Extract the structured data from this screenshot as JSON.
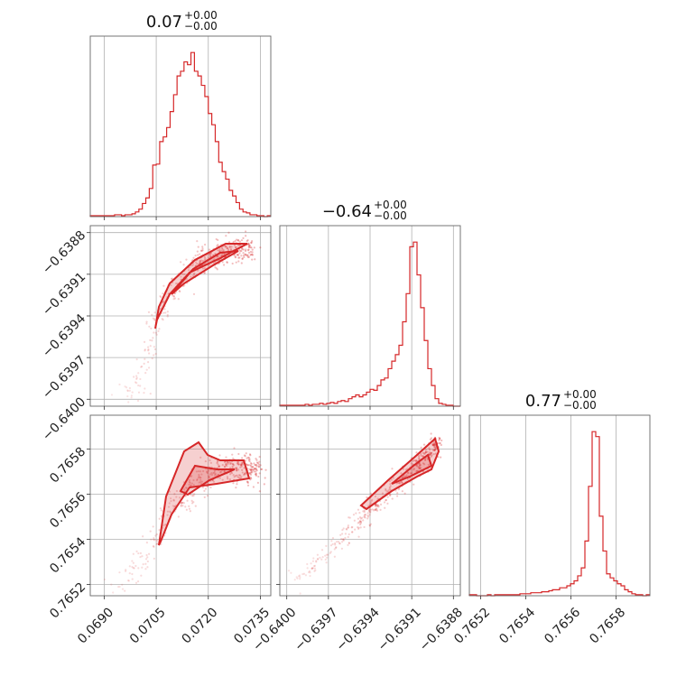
{
  "chart_data": {
    "type": "corner",
    "color": "#d62728",
    "parameters": [
      {
        "title_value": "0.07",
        "title_plus": "+0.00",
        "title_minus": "−0.00",
        "range": [
          0.0686,
          0.0738
        ],
        "ticks": [
          {
            "value": 0.069,
            "label": "0.0690"
          },
          {
            "value": 0.0705,
            "label": "0.0705"
          },
          {
            "value": 0.072,
            "label": "0.0720"
          },
          {
            "value": 0.0735,
            "label": "0.0735"
          }
        ],
        "hist": {
          "bin_edges_start": 0.0686,
          "bin_width": 0.0001,
          "counts": [
            1,
            1,
            1,
            1,
            1,
            1,
            1,
            2,
            2,
            1,
            2,
            2,
            3,
            5,
            8,
            14,
            20,
            30,
            55,
            56,
            80,
            85,
            95,
            112,
            130,
            150,
            155,
            165,
            162,
            175,
            155,
            150,
            140,
            128,
            110,
            98,
            80,
            58,
            48,
            40,
            28,
            22,
            15,
            8,
            5,
            4,
            2,
            2,
            1,
            1,
            0,
            1
          ]
        }
      },
      {
        "title_value": "−0.64",
        "title_plus": "+0.00",
        "title_minus": "−0.00",
        "range": [
          -0.64005,
          -0.63875
        ],
        "ticks": [
          {
            "value": -0.64,
            "label": "−0.6400"
          },
          {
            "value": -0.6397,
            "label": "−0.6397"
          },
          {
            "value": -0.6394,
            "label": "−0.6394"
          },
          {
            "value": -0.6391,
            "label": "−0.6391"
          },
          {
            "value": -0.6388,
            "label": "−0.6388"
          }
        ],
        "hist": {
          "bin_edges_start": -0.64005,
          "bin_width": 2.6e-05,
          "counts": [
            1,
            1,
            1,
            1,
            1,
            1,
            1,
            2,
            1,
            2,
            2,
            3,
            2,
            3,
            4,
            3,
            5,
            6,
            5,
            8,
            10,
            12,
            10,
            12,
            15,
            18,
            17,
            22,
            28,
            30,
            40,
            48,
            55,
            65,
            90,
            120,
            170,
            175,
            140,
            105,
            70,
            40,
            22,
            8,
            3,
            2,
            1,
            1,
            0,
            0
          ]
        }
      },
      {
        "title_value": "0.77",
        "title_plus": "+0.00",
        "title_minus": "−0.00",
        "range": [
          0.76515,
          0.76595
        ],
        "ticks": [
          {
            "value": 0.7652,
            "label": "0.7652"
          },
          {
            "value": 0.7654,
            "label": "0.7654"
          },
          {
            "value": 0.7656,
            "label": "0.7656"
          },
          {
            "value": 0.7658,
            "label": "0.7658"
          }
        ],
        "hist": {
          "bin_edges_start": 0.76515,
          "bin_width": 1.6e-05,
          "counts": [
            1,
            1,
            0,
            0,
            0,
            1,
            0,
            1,
            1,
            1,
            1,
            1,
            1,
            1,
            2,
            2,
            2,
            3,
            3,
            3,
            4,
            4,
            5,
            6,
            6,
            8,
            8,
            10,
            12,
            15,
            20,
            28,
            55,
            110,
            165,
            160,
            80,
            45,
            22,
            18,
            15,
            12,
            10,
            6,
            4,
            2,
            1,
            1,
            0,
            1
          ]
        }
      }
    ],
    "pairs": [
      {
        "row": 1,
        "col": 0,
        "x_param": 0,
        "y_param": 1,
        "xlim": [
          0.0686,
          0.0738
        ],
        "ylim": [
          -0.64005,
          -0.63875
        ]
      },
      {
        "row": 2,
        "col": 0,
        "x_param": 0,
        "y_param": 2,
        "xlim": [
          0.0686,
          0.0738
        ],
        "ylim": [
          0.76515,
          0.76595
        ]
      },
      {
        "row": 2,
        "col": 1,
        "x_param": 1,
        "y_param": 2,
        "xlim": [
          -0.64005,
          -0.63875
        ],
        "ylim": [
          0.76515,
          0.76595
        ]
      }
    ],
    "grid": true
  }
}
